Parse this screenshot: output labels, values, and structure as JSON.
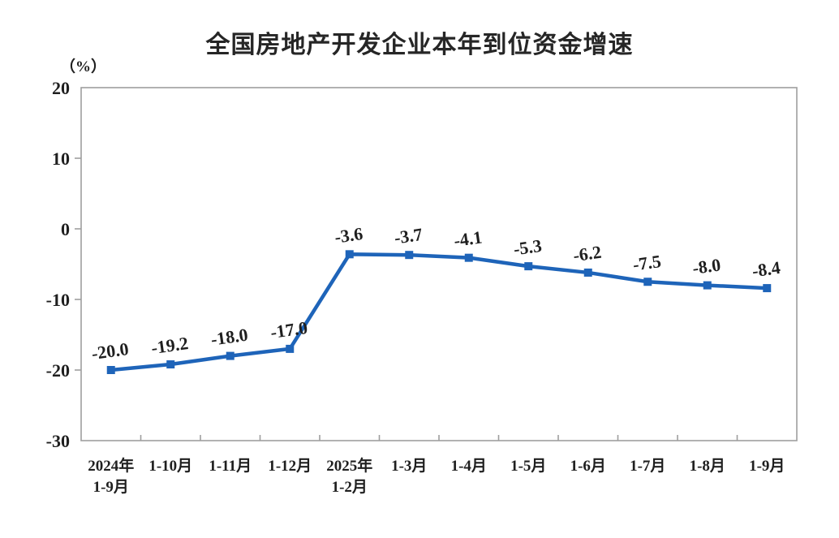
{
  "chart_data": {
    "type": "line",
    "title": "全国房地产开发企业本年到位资金增速",
    "unit_label": "（%）",
    "categories": [
      [
        "2024年",
        "1-9月"
      ],
      [
        "1-10月"
      ],
      [
        "1-11月"
      ],
      [
        "1-12月"
      ],
      [
        "2025年",
        "1-2月"
      ],
      [
        "1-3月"
      ],
      [
        "1-4月"
      ],
      [
        "1-5月"
      ],
      [
        "1-6月"
      ],
      [
        "1-7月"
      ],
      [
        "1-8月"
      ],
      [
        "1-9月"
      ]
    ],
    "series": [
      {
        "values": [
          -20.0,
          -19.2,
          -18.0,
          -17.0,
          -3.6,
          -3.7,
          -4.1,
          -5.3,
          -6.2,
          -7.5,
          -8.0,
          -8.4
        ],
        "labels": [
          "-20.0",
          "-19.2",
          "-18.0",
          "-17.0",
          "-3.6",
          "-3.7",
          "-4.1",
          "-5.3",
          "-6.2",
          "-7.5",
          "-8.0",
          "-8.4"
        ],
        "color": "#1E64B9"
      }
    ],
    "yticks": [
      20,
      10,
      0,
      -10,
      -20,
      -30
    ],
    "ylim": [
      -30,
      20
    ],
    "grid": false,
    "legend": "none",
    "axis_color": "#9E9E9E",
    "text_color": "#1F1F1F"
  }
}
